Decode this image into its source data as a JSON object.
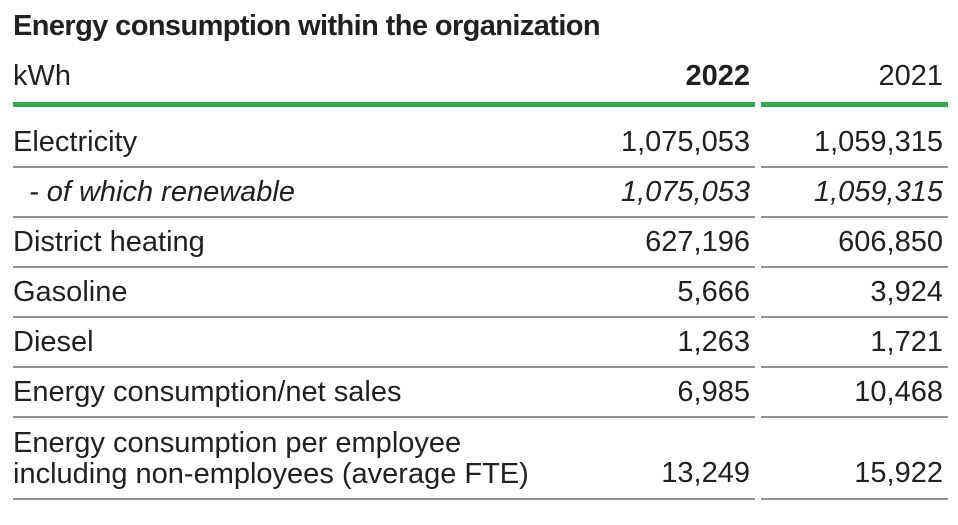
{
  "title": "Energy consumption within the organization",
  "table": {
    "unit_label": "kWh",
    "columns": {
      "col_2022": "2022",
      "col_2021": "2021"
    },
    "rows": [
      {
        "label": "Electricity",
        "v2022": "1,075,053",
        "v2021": "1,059,315"
      },
      {
        "label": "- of which renewable",
        "v2022": "1,075,053",
        "v2021": "1,059,315"
      },
      {
        "label": "District heating",
        "v2022": "627,196",
        "v2021": "606,850"
      },
      {
        "label": "Gasoline",
        "v2022": "5,666",
        "v2021": "3,924"
      },
      {
        "label": "Diesel",
        "v2022": "1,263",
        "v2021": "1,721"
      },
      {
        "label": "Energy consumption/net sales",
        "v2022": "6,985",
        "v2021": "10,468"
      },
      {
        "label_lines": [
          "Energy consumption per employee",
          "including non-employees (average FTE)"
        ],
        "v2022": "13,249",
        "v2021": "15,922"
      }
    ],
    "colors": {
      "accent_green": "#2fab4f",
      "separator_gray": "#919191",
      "text": "#221f20"
    }
  }
}
